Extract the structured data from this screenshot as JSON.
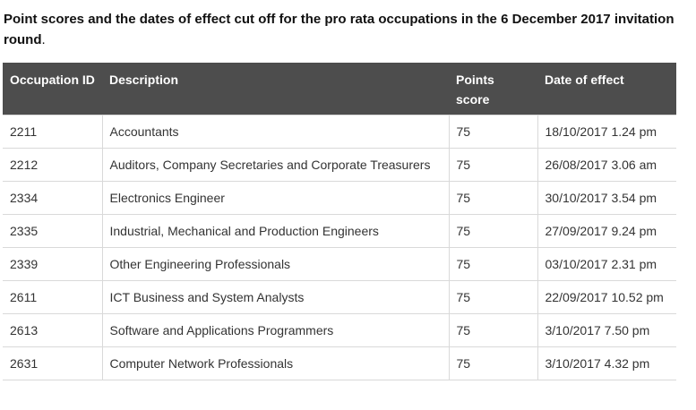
{
  "caption": {
    "text": "Point scores and the dates of effect cut off for the pro rata occupations in the 6 December 2017 invitation round",
    "terminal": "."
  },
  "table": {
    "headers": {
      "id": "Occupation ID",
      "description": "Description",
      "points": "Points score",
      "date": "Date of effect"
    },
    "rows": [
      {
        "id": "2211",
        "description": "Accountants",
        "points": "75",
        "date": "18/10/2017 1.24 pm"
      },
      {
        "id": "2212",
        "description": "Auditors, Company Secretaries and Corporate Treasurers",
        "points": "75",
        "date": "26/08/2017 3.06 am"
      },
      {
        "id": "2334",
        "description": "Electronics Engineer",
        "points": "75",
        "date": "30/10/2017 3.54 pm"
      },
      {
        "id": "2335",
        "description": "Industrial, Mechanical and Production Engineers",
        "points": "75",
        "date": "27/09/2017 9.24 pm"
      },
      {
        "id": "2339",
        "description": "Other Engineering Professionals",
        "points": "75",
        "date": "03/10/2017 2.31 pm"
      },
      {
        "id": "2611",
        "description": "ICT Business and System Analysts",
        "points": "75",
        "date": "22/09/2017 10.52 pm"
      },
      {
        "id": "2613",
        "description": "Software and Applications Programmers",
        "points": "75",
        "date": "3/10/2017 7.50 pm"
      },
      {
        "id": "2631",
        "description": "Computer Network Professionals",
        "points": "75",
        "date": "3/10/2017 4.32 pm"
      }
    ]
  }
}
